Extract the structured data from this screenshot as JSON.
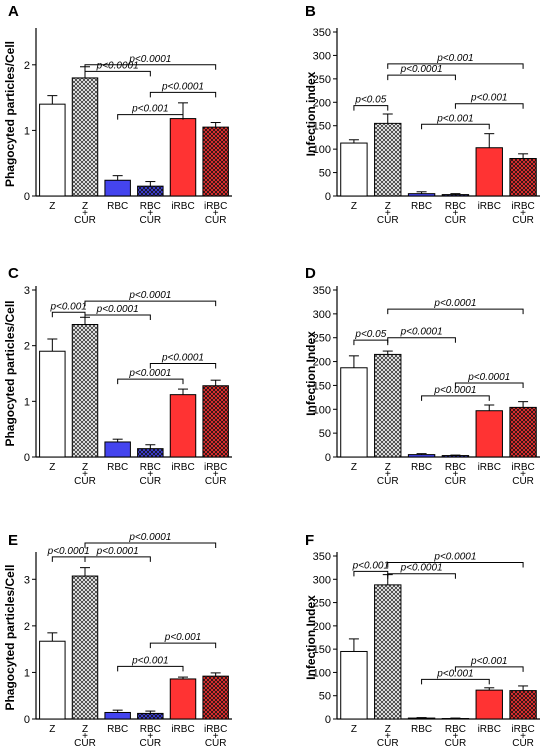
{
  "chart_data": [
    {
      "panel": "A",
      "type": "bar",
      "ylabel": "Phagocyted particles/Cell",
      "ylim": [
        0,
        2.5
      ],
      "yticks": [
        0,
        1,
        2
      ],
      "categories": [
        [
          "Z"
        ],
        [
          "Z",
          "+",
          "CUR"
        ],
        [
          "RBC"
        ],
        [
          "RBC",
          "+",
          "CUR"
        ],
        [
          "iRBC"
        ],
        [
          "iRBC",
          "+",
          "CUR"
        ]
      ],
      "values": [
        1.4,
        1.8,
        0.24,
        0.15,
        1.18,
        1.05
      ],
      "errors": [
        0.13,
        0.17,
        0.07,
        0.07,
        0.24,
        0.07
      ],
      "annotations": [
        {
          "from": 1,
          "to": 5,
          "level": 2.0,
          "text": "p<0.0001"
        },
        {
          "from": 1,
          "to": 3,
          "level": 1.9,
          "text": "p<0.0001"
        },
        {
          "from": 3,
          "to": 5,
          "level": 1.58,
          "text": "p<0.0001"
        },
        {
          "from": 2,
          "to": 4,
          "level": 1.24,
          "text": "p<0.001"
        }
      ]
    },
    {
      "panel": "B",
      "type": "bar",
      "ylabel": "Infection index",
      "ylim": [
        0,
        350
      ],
      "yticks": [
        0,
        50,
        100,
        150,
        200,
        250,
        300,
        350
      ],
      "categories": [
        [
          "Z"
        ],
        [
          "Z",
          "+",
          "CUR"
        ],
        [
          "RBC"
        ],
        [
          "RBC",
          "+",
          "CUR"
        ],
        [
          "iRBC"
        ],
        [
          "iRBC",
          "+",
          "CUR"
        ]
      ],
      "values": [
        113,
        155,
        5,
        3,
        103,
        80
      ],
      "errors": [
        7,
        20,
        4,
        2,
        30,
        10
      ],
      "annotations": [
        {
          "from": 1,
          "to": 5,
          "level": 282,
          "text": "p<0.001"
        },
        {
          "from": 1,
          "to": 3,
          "level": 258,
          "text": "p<0.0001"
        },
        {
          "from": 0,
          "to": 1,
          "level": 193,
          "text": "p<0.05"
        },
        {
          "from": 3,
          "to": 5,
          "level": 197,
          "text": "p<0.001"
        },
        {
          "from": 2,
          "to": 4,
          "level": 153,
          "text": "p<0.001"
        }
      ]
    },
    {
      "panel": "C",
      "type": "bar",
      "ylabel": "Phagocyted particles/Cell",
      "ylim": [
        0,
        3
      ],
      "yticks": [
        0,
        1,
        2,
        3
      ],
      "categories": [
        [
          "Z"
        ],
        [
          "Z",
          "+",
          "CUR"
        ],
        [
          "RBC"
        ],
        [
          "RBC",
          "+",
          "CUR"
        ],
        [
          "iRBC"
        ],
        [
          "iRBC",
          "+",
          "CUR"
        ]
      ],
      "values": [
        1.9,
        2.38,
        0.27,
        0.15,
        1.12,
        1.28
      ],
      "errors": [
        0.22,
        0.13,
        0.05,
        0.07,
        0.1,
        0.1
      ],
      "annotations": [
        {
          "from": 1,
          "to": 5,
          "level": 2.8,
          "text": "p<0.0001"
        },
        {
          "from": 0,
          "to": 1,
          "level": 2.6,
          "text": "p<0.001"
        },
        {
          "from": 1,
          "to": 3,
          "level": 2.55,
          "text": "p<0.0001"
        },
        {
          "from": 3,
          "to": 5,
          "level": 1.68,
          "text": "p<0.0001"
        },
        {
          "from": 2,
          "to": 4,
          "level": 1.4,
          "text": "p<0.0001"
        }
      ]
    },
    {
      "panel": "D",
      "type": "bar",
      "ylabel": "Infection Index",
      "ylim": [
        0,
        350
      ],
      "yticks": [
        0,
        50,
        100,
        150,
        200,
        250,
        300,
        350
      ],
      "categories": [
        [
          "Z"
        ],
        [
          "Z",
          "+",
          "CUR"
        ],
        [
          "RBC"
        ],
        [
          "RBC",
          "+",
          "CUR"
        ],
        [
          "iRBC"
        ],
        [
          "iRBC",
          "+",
          "CUR"
        ]
      ],
      "values": [
        187,
        215,
        5,
        3,
        97,
        104
      ],
      "errors": [
        25,
        7,
        2,
        1,
        12,
        12
      ],
      "annotations": [
        {
          "from": 1,
          "to": 5,
          "level": 310,
          "text": "p<0.0001"
        },
        {
          "from": 1,
          "to": 3,
          "level": 250,
          "text": "p<0.0001"
        },
        {
          "from": 0,
          "to": 1,
          "level": 245,
          "text": "p<0.05"
        },
        {
          "from": 3,
          "to": 5,
          "level": 155,
          "text": "p<0.0001"
        },
        {
          "from": 2,
          "to": 4,
          "level": 128,
          "text": "p<0.0001"
        }
      ]
    },
    {
      "panel": "E",
      "type": "bar",
      "ylabel": "Phagocyted particles/Cell",
      "ylim": [
        0,
        3.5
      ],
      "yticks": [
        0,
        1,
        2,
        3
      ],
      "categories": [
        [
          "Z"
        ],
        [
          "Z",
          "+",
          "CUR"
        ],
        [
          "RBC"
        ],
        [
          "RBC",
          "+",
          "CUR"
        ],
        [
          "iRBC"
        ],
        [
          "iRBC",
          "+",
          "CUR"
        ]
      ],
      "values": [
        1.67,
        3.07,
        0.14,
        0.12,
        0.86,
        0.92
      ],
      "errors": [
        0.18,
        0.18,
        0.05,
        0.05,
        0.04,
        0.07
      ],
      "annotations": [
        {
          "from": 1,
          "to": 5,
          "level": 3.78,
          "text": "p<0.0001"
        },
        {
          "from": 0,
          "to": 1,
          "level": 3.48,
          "text": "p<0.0001"
        },
        {
          "from": 1,
          "to": 3,
          "level": 3.48,
          "text": "p<0.0001"
        },
        {
          "from": 3,
          "to": 5,
          "level": 1.63,
          "text": "p<0.001"
        },
        {
          "from": 2,
          "to": 4,
          "level": 1.13,
          "text": "p<0.001"
        }
      ]
    },
    {
      "panel": "F",
      "type": "bar",
      "ylabel": "Infection Index",
      "ylim": [
        0,
        350
      ],
      "yticks": [
        0,
        50,
        100,
        150,
        200,
        250,
        300,
        350
      ],
      "categories": [
        [
          "Z"
        ],
        [
          "Z",
          "+",
          "CUR"
        ],
        [
          "RBC"
        ],
        [
          "RBC",
          "+",
          "CUR"
        ],
        [
          "iRBC"
        ],
        [
          "iRBC",
          "+",
          "CUR"
        ]
      ],
      "values": [
        145,
        288,
        2,
        1,
        62,
        61
      ],
      "errors": [
        27,
        22,
        1,
        1,
        5,
        10
      ],
      "annotations": [
        {
          "from": 1,
          "to": 5,
          "level": 336,
          "text": "p<0.0001"
        },
        {
          "from": 0,
          "to": 1,
          "level": 317,
          "text": "p<0.001"
        },
        {
          "from": 1,
          "to": 3,
          "level": 312,
          "text": "p<0.0001"
        },
        {
          "from": 3,
          "to": 5,
          "level": 112,
          "text": "p<0.001"
        },
        {
          "from": 2,
          "to": 4,
          "level": 85,
          "text": "p<0.001"
        }
      ]
    }
  ],
  "colors": {
    "z": "#ffffff",
    "rbc": "#4444ee",
    "irbc": "#ff3333",
    "axis": "#000000"
  },
  "bar_styles": [
    "solid",
    "hatched",
    "solid",
    "hatched",
    "solid",
    "hatched"
  ],
  "bar_groups": [
    "z",
    "z",
    "rbc",
    "rbc",
    "irbc",
    "irbc"
  ]
}
